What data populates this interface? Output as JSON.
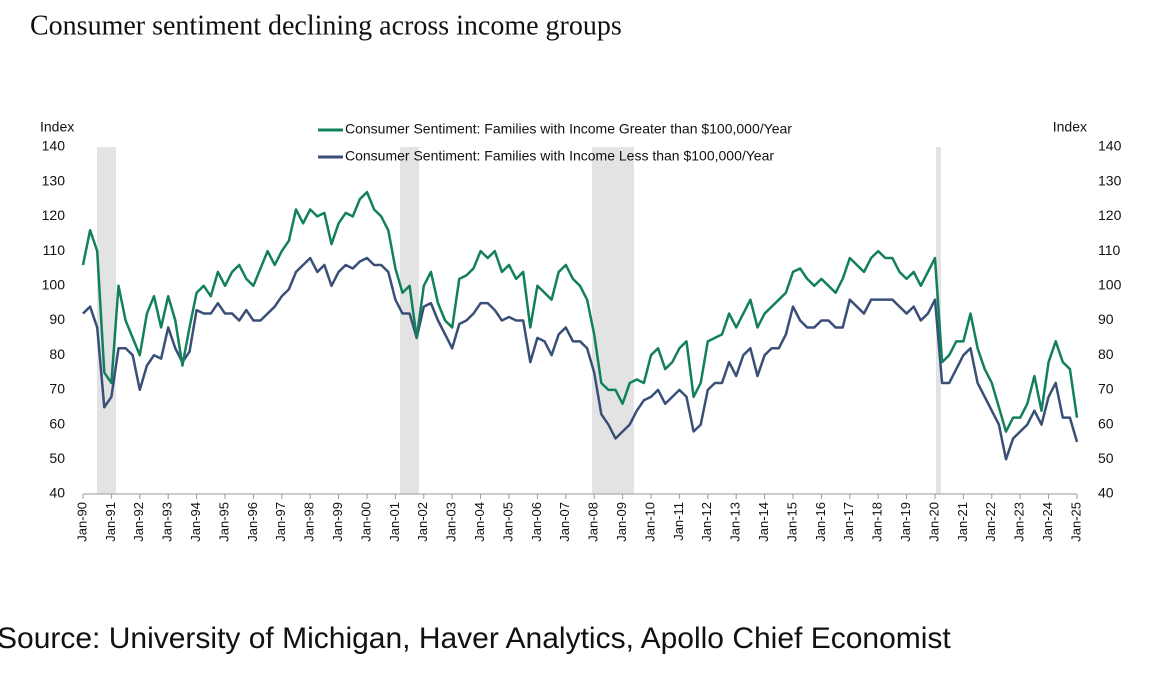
{
  "chart_data": {
    "type": "line",
    "title": "Consumer sentiment declining across income groups",
    "y_label": "Index",
    "y2_label": "Index",
    "source": "Source: University of Michigan, Haver Analytics, Apollo Chief Economist",
    "categories": [
      "Jan-90",
      null,
      null,
      null,
      "Jan-91",
      null,
      null,
      null,
      "Jan-92",
      null,
      null,
      null,
      "Jan-93",
      null,
      null,
      null,
      "Jan-94",
      null,
      null,
      null,
      "Jan-95",
      null,
      null,
      null,
      "Jan-96",
      null,
      null,
      null,
      "Jan-97",
      null,
      null,
      null,
      "Jan-98",
      null,
      null,
      null,
      "Jan-99",
      null,
      null,
      null,
      "Jan-00",
      null,
      null,
      null,
      "Jan-01",
      null,
      null,
      null,
      "Jan-02",
      null,
      null,
      null,
      "Jan-03",
      null,
      null,
      null,
      "Jan-04",
      null,
      null,
      null,
      "Jan-05",
      null,
      null,
      null,
      "Jan-06",
      null,
      null,
      null,
      "Jan-07",
      null,
      null,
      null,
      "Jan-08",
      null,
      null,
      null,
      "Jan-09",
      null,
      null,
      null,
      "Jan-10",
      null,
      null,
      null,
      "Jan-11",
      null,
      null,
      null,
      "Jan-12",
      null,
      null,
      null,
      "Jan-13",
      null,
      null,
      null,
      "Jan-14",
      null,
      null,
      null,
      "Jan-15",
      null,
      null,
      null,
      "Jan-16",
      null,
      null,
      null,
      "Jan-17",
      null,
      null,
      null,
      "Jan-18",
      null,
      null,
      null,
      "Jan-19",
      null,
      null,
      null,
      "Jan-20",
      null,
      null,
      null,
      "Jan-21",
      null,
      null,
      null,
      "Jan-22",
      null,
      null,
      null,
      "Jan-23",
      null,
      null,
      null,
      "Jan-24",
      null,
      null,
      null,
      "Jan-25"
    ],
    "series": [
      {
        "name": "Consumer Sentiment: Families with Income Greater than $100,000/Year",
        "color": "#12805c",
        "values": [
          106,
          116,
          110,
          75,
          72,
          100,
          90,
          85,
          80,
          92,
          97,
          88,
          97,
          90,
          77,
          88,
          98,
          100,
          97,
          104,
          100,
          104,
          106,
          102,
          100,
          105,
          110,
          106,
          110,
          113,
          122,
          118,
          122,
          120,
          121,
          112,
          118,
          121,
          120,
          125,
          127,
          122,
          120,
          116,
          105,
          98,
          100,
          85,
          100,
          104,
          95,
          90,
          88,
          102,
          103,
          105,
          110,
          108,
          110,
          104,
          106,
          102,
          104,
          88,
          100,
          98,
          96,
          104,
          106,
          102,
          100,
          96,
          86,
          72,
          70,
          70,
          66,
          72,
          73,
          72,
          80,
          82,
          76,
          78,
          82,
          84,
          68,
          72,
          84,
          85,
          86,
          92,
          88,
          92,
          96,
          88,
          92,
          94,
          96,
          98,
          104,
          105,
          102,
          100,
          102,
          100,
          98,
          102,
          108,
          106,
          104,
          108,
          110,
          108,
          108,
          104,
          102,
          104,
          100,
          104,
          108,
          78,
          80,
          84,
          84,
          92,
          82,
          76,
          72,
          65,
          58,
          62,
          62,
          66,
          74,
          64,
          78,
          84,
          78,
          76,
          62
        ]
      },
      {
        "name": "Consumer Sentiment: Families with Income Less than $100,000/Year",
        "color": "#3a4f78",
        "axis": "y2",
        "values": [
          92,
          94,
          88,
          65,
          68,
          82,
          82,
          80,
          70,
          77,
          80,
          79,
          88,
          82,
          78,
          81,
          93,
          92,
          92,
          95,
          92,
          92,
          90,
          93,
          90,
          90,
          92,
          94,
          97,
          99,
          104,
          106,
          108,
          104,
          106,
          100,
          104,
          106,
          105,
          107,
          108,
          106,
          106,
          104,
          96,
          92,
          92,
          85,
          94,
          95,
          90,
          86,
          82,
          89,
          90,
          92,
          95,
          95,
          93,
          90,
          91,
          90,
          90,
          78,
          85,
          84,
          80,
          86,
          88,
          84,
          84,
          82,
          75,
          63,
          60,
          56,
          58,
          60,
          64,
          67,
          68,
          70,
          66,
          68,
          70,
          68,
          58,
          60,
          70,
          72,
          72,
          78,
          74,
          80,
          82,
          74,
          80,
          82,
          82,
          86,
          94,
          90,
          88,
          88,
          90,
          90,
          88,
          88,
          96,
          94,
          92,
          96,
          96,
          96,
          96,
          94,
          92,
          94,
          90,
          92,
          96,
          72,
          72,
          76,
          80,
          82,
          72,
          68,
          64,
          60,
          50,
          56,
          58,
          60,
          64,
          60,
          68,
          72,
          62,
          62,
          55
        ]
      }
    ],
    "ylim": [
      40,
      140
    ],
    "yticks": [
      40,
      50,
      60,
      70,
      80,
      90,
      100,
      110,
      120,
      130,
      140
    ],
    "y2lim": [
      40,
      140
    ],
    "y2ticks": [
      40,
      50,
      60,
      70,
      80,
      90,
      100,
      110,
      120,
      130,
      140
    ],
    "grid": false
  }
}
